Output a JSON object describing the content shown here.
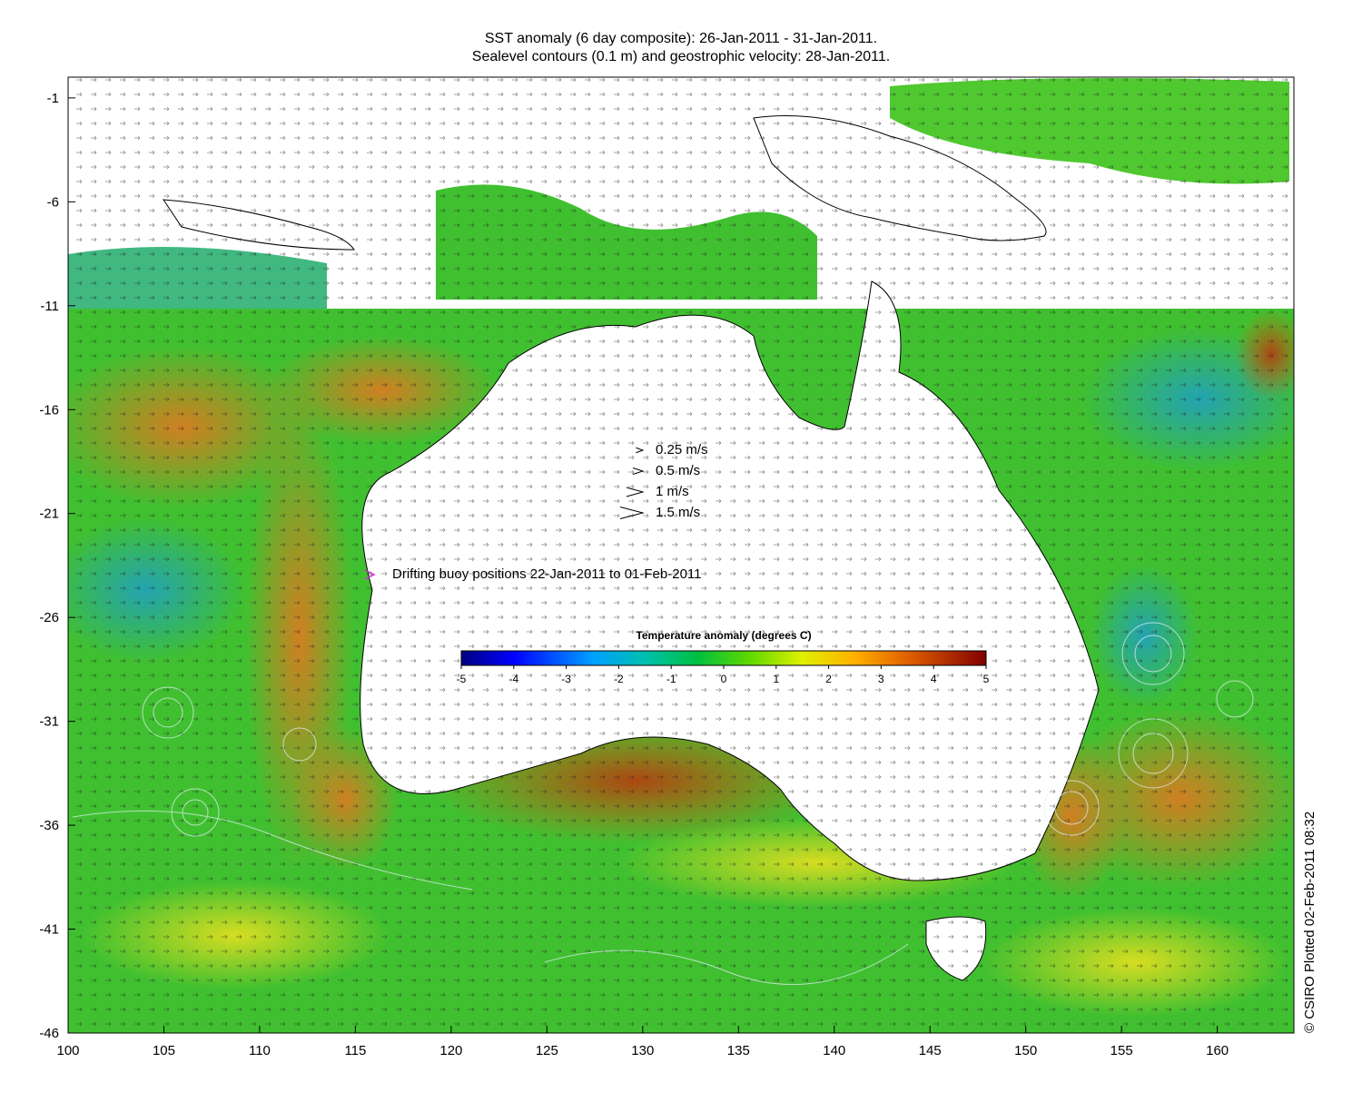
{
  "titles": {
    "line1": "SST anomaly (6 day composite): 26-Jan-2011 - 31-Jan-2011.",
    "line2": "Sealevel contours (0.1 m) and geostrophic velocity: 28-Jan-2011."
  },
  "axes": {
    "lon_ticks": [
      "100",
      "105",
      "110",
      "115",
      "120",
      "125",
      "130",
      "135",
      "140",
      "145",
      "150",
      "155",
      "160"
    ],
    "lat_ticks": [
      "-1",
      "-6",
      "-11",
      "-16",
      "-21",
      "-26",
      "-31",
      "-36",
      "-41",
      "-46"
    ],
    "lon_range": [
      100,
      164
    ],
    "lat_range": [
      -46,
      0
    ]
  },
  "velocity_legend": [
    {
      "label": "0.25 m/s",
      "speed": 0.25
    },
    {
      "label": "0.5 m/s",
      "speed": 0.5
    },
    {
      "label": "1 m/s",
      "speed": 1
    },
    {
      "label": "1.5 m/s",
      "speed": 1.5
    }
  ],
  "buoy_legend": {
    "label": "Drifting buoy positions 22-Jan-2011 to 01-Feb-2011",
    "marker_color": "#cc33cc"
  },
  "colorbar": {
    "title": "Temperature anomaly (degrees C)",
    "ticks": [
      "-5",
      "-4",
      "-3",
      "-2",
      "-1",
      "0",
      "1",
      "2",
      "3",
      "4",
      "5"
    ],
    "range": [
      -5,
      5
    ],
    "colors": [
      "#00007f",
      "#0000ff",
      "#0080ff",
      "#00ccff",
      "#00c0a0",
      "#00c040",
      "#40d000",
      "#e0f000",
      "#ffb000",
      "#e06000",
      "#800000"
    ]
  },
  "credit": "© CSIRO Plotted 02-Feb-2011 08:32",
  "colors": {
    "land": "#ffffff",
    "ocean_warm": "#e8a020",
    "ocean_mid": "#40c020",
    "ocean_cool": "#20b0a0",
    "coastline": "#000000",
    "contour": "#e8f0ff"
  }
}
